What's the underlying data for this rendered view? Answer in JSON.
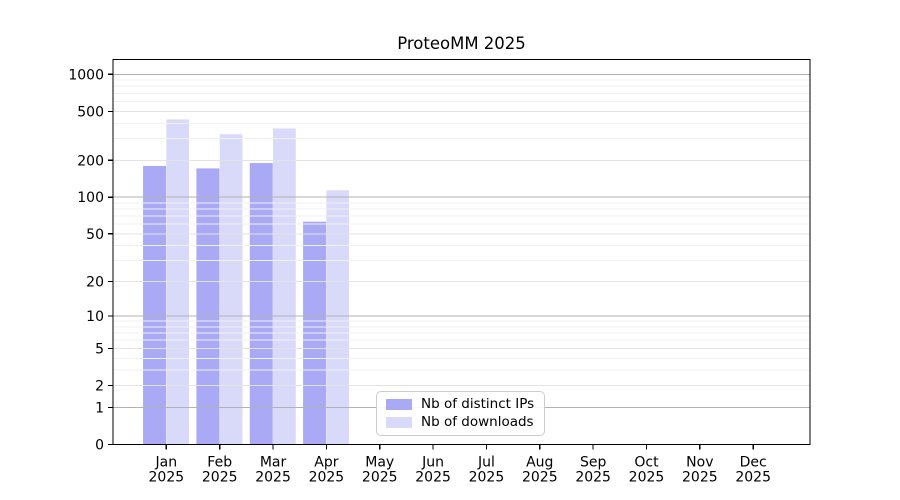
{
  "chart_data": {
    "type": "bar",
    "title": "ProteoMM 2025",
    "categories": [
      {
        "month": "Jan",
        "year": "2025"
      },
      {
        "month": "Feb",
        "year": "2025"
      },
      {
        "month": "Mar",
        "year": "2025"
      },
      {
        "month": "Apr",
        "year": "2025"
      },
      {
        "month": "May",
        "year": "2025"
      },
      {
        "month": "Jun",
        "year": "2025"
      },
      {
        "month": "Jul",
        "year": "2025"
      },
      {
        "month": "Aug",
        "year": "2025"
      },
      {
        "month": "Sep",
        "year": "2025"
      },
      {
        "month": "Oct",
        "year": "2025"
      },
      {
        "month": "Nov",
        "year": "2025"
      },
      {
        "month": "Dec",
        "year": "2025"
      }
    ],
    "series": [
      {
        "name": "Nb of distinct IPs",
        "color": "#a9a9f5",
        "values": [
          180,
          172,
          190,
          63,
          0,
          0,
          0,
          0,
          0,
          0,
          0,
          0
        ]
      },
      {
        "name": "Nb of downloads",
        "color": "#d9d9f9",
        "values": [
          430,
          326,
          363,
          114,
          0,
          0,
          0,
          0,
          0,
          0,
          0,
          0
        ]
      }
    ],
    "xlabel": "",
    "ylabel": "",
    "y_axis": {
      "scale": "log10(value+1)",
      "ticks": [
        0,
        1,
        2,
        5,
        10,
        20,
        50,
        100,
        200,
        500,
        1000
      ],
      "range": [
        0,
        1310
      ],
      "minor_gridlines": [
        3,
        4,
        6,
        7,
        8,
        9,
        30,
        40,
        60,
        70,
        80,
        90,
        300,
        400,
        600,
        700,
        800,
        900
      ]
    },
    "grid": true,
    "legend_position": "lower-center",
    "colors": {
      "grid_minor": "#f1f1f1",
      "grid_labeled": "#e3e3e3",
      "grid_power10": "#b2b2b2",
      "axis": "#000000",
      "legend_border": "#cccccc"
    }
  }
}
